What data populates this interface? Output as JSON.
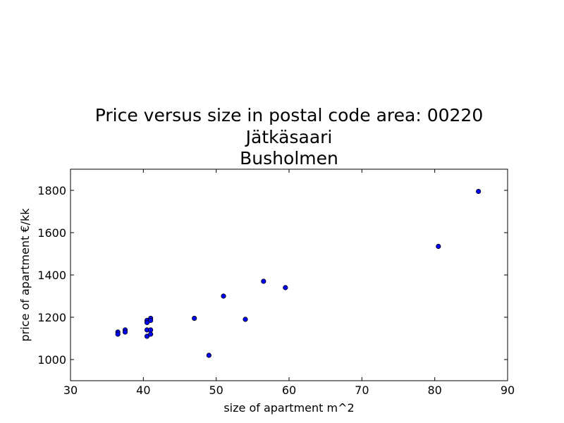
{
  "colors": {
    "background": "#ffffff",
    "axes": "#000000",
    "marker_fill": "#0000ff",
    "marker_edge": "#000000"
  },
  "chart_data": {
    "type": "scatter",
    "title_lines": [
      "Price versus size in postal code area: 00220",
      "Jätkäsaari",
      "Busholmen"
    ],
    "xlabel": "size of apartment m^2",
    "ylabel": "price of apartment €/kk",
    "xlim": [
      30,
      90
    ],
    "ylim": [
      900,
      1900
    ],
    "xticks": [
      30,
      40,
      50,
      60,
      70,
      80,
      90
    ],
    "yticks": [
      1000,
      1200,
      1400,
      1600,
      1800
    ],
    "grid": false,
    "legend": false,
    "points": [
      {
        "x": 36.5,
        "y": 1130
      },
      {
        "x": 36.5,
        "y": 1120
      },
      {
        "x": 37.5,
        "y": 1140
      },
      {
        "x": 37.5,
        "y": 1130
      },
      {
        "x": 40.5,
        "y": 1185
      },
      {
        "x": 40.5,
        "y": 1175
      },
      {
        "x": 40.5,
        "y": 1140
      },
      {
        "x": 40.5,
        "y": 1110
      },
      {
        "x": 41.0,
        "y": 1195
      },
      {
        "x": 41.0,
        "y": 1185
      },
      {
        "x": 41.0,
        "y": 1140
      },
      {
        "x": 41.0,
        "y": 1120
      },
      {
        "x": 47.0,
        "y": 1195
      },
      {
        "x": 49.0,
        "y": 1020
      },
      {
        "x": 51.0,
        "y": 1300
      },
      {
        "x": 54.0,
        "y": 1190
      },
      {
        "x": 56.5,
        "y": 1370
      },
      {
        "x": 59.5,
        "y": 1340
      },
      {
        "x": 80.5,
        "y": 1535
      },
      {
        "x": 86.0,
        "y": 1795
      }
    ]
  }
}
